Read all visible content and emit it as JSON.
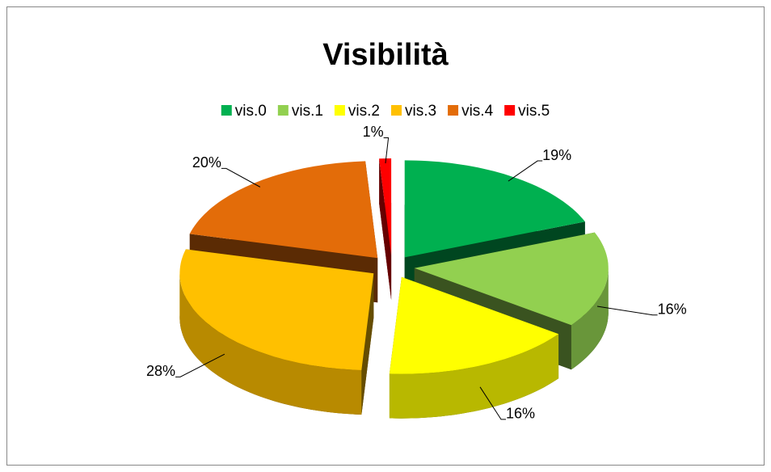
{
  "chart_data": {
    "type": "pie3d",
    "title": "Visibilità",
    "categories": [
      "vis.0",
      "vis.1",
      "vis.2",
      "vis.3",
      "vis.4",
      "vis.5"
    ],
    "values": [
      19,
      16,
      16,
      28,
      20,
      1
    ],
    "value_labels": [
      "19%",
      "16%",
      "16%",
      "28%",
      "20%",
      "1%"
    ],
    "colors": [
      "#00b050",
      "#92d050",
      "#ffff00",
      "#ffc000",
      "#e36c09",
      "#ff0000"
    ],
    "legend": "top"
  }
}
